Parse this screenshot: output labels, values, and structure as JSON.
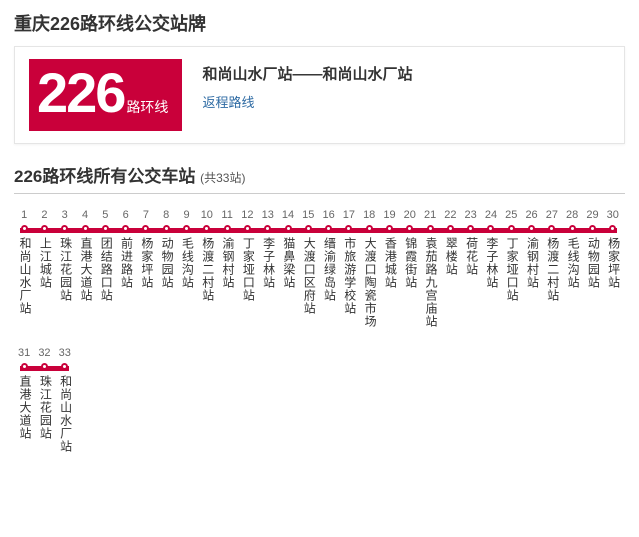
{
  "page_title": "重庆226路环线公交站牌",
  "badge": {
    "number": "226",
    "suffix": "路环线",
    "bg_color": "#c9003a",
    "text_color": "#ffffff"
  },
  "route": {
    "title": "和尚山水厂站——和尚山水厂站",
    "return_link": "返程路线",
    "link_color": "#2d6aa3"
  },
  "section": {
    "title": "226路环线所有公交车站",
    "count_label": "(共33站)"
  },
  "line_style": {
    "color": "#c9003a",
    "height": 5,
    "dot_border": "#c9003a",
    "dot_fill": "#ffffff",
    "stop_width": 20.3
  },
  "stops": [
    "和尚山水厂站",
    "上江城站",
    "珠江花园站",
    "直港大道站",
    "团结路口站",
    "前进路站",
    "杨家坪站",
    "动物园站",
    "毛线沟站",
    "杨渡二村站",
    "渝钢村站",
    "丁家垭口站",
    "李子林站",
    "猫鼻梁站",
    "大渡口区府站",
    "缙渝绿岛站",
    "市旅游学校站",
    "大渡口陶瓷市场",
    "香港城站",
    "锦霞街站",
    "袁茄路九宫庙站",
    "翠楼站",
    "荷花站",
    "李子林站",
    "丁家垭口站",
    "渝钢村站",
    "杨渡二村站",
    "毛线沟站",
    "动物园站",
    "杨家坪站",
    "直港大道站",
    "珠江花园站",
    "和尚山水厂站"
  ],
  "rows": [
    {
      "start": 0,
      "end": 30
    },
    {
      "start": 30,
      "end": 33
    }
  ]
}
